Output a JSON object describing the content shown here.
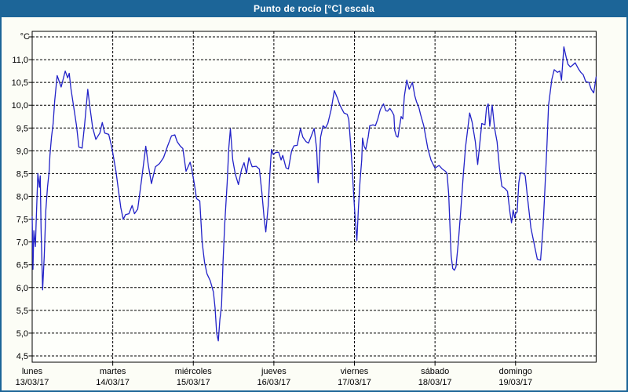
{
  "window": {
    "title": "Punto de rocío [°C] escala"
  },
  "colors": {
    "titlebar": "#1c6598",
    "outer_border": "#1c6598",
    "page_background": "#fcfdf6",
    "plot_background": "#fefffb",
    "grid": "#000000",
    "axis_text": "#000000",
    "line": "#2222c8"
  },
  "chart_data": {
    "type": "line",
    "title": "Punto de rocío [°C] escala",
    "y_unit_label": "°C",
    "ylabel": "Punto de rocío",
    "ylim": [
      4.5,
      11.5
    ],
    "y_tick_step": 0.5,
    "y_tick_labels": [
      "11,0",
      "10,5",
      "10,0",
      "9,5",
      "9,0",
      "8,5",
      "8,0",
      "7,5",
      "7,0",
      "6,5",
      "6,0",
      "5,5",
      "5,0",
      "4,5"
    ],
    "y_tick_values": [
      11.0,
      10.5,
      10.0,
      9.5,
      9.0,
      8.5,
      8.0,
      7.5,
      7.0,
      6.5,
      6.0,
      5.5,
      5.0,
      4.5
    ],
    "grid": {
      "dashed": true,
      "horizontal": true,
      "vertical_at_day_boundaries": true
    },
    "x_days": [
      {
        "name": "lunes",
        "date": "13/03/17"
      },
      {
        "name": "martes",
        "date": "14/03/17"
      },
      {
        "name": "miércoles",
        "date": "15/03/17"
      },
      {
        "name": "jueves",
        "date": "16/03/17"
      },
      {
        "name": "viernes",
        "date": "17/03/17"
      },
      {
        "name": "sábado",
        "date": "18/03/17"
      },
      {
        "name": "domingo",
        "date": "19/03/17"
      }
    ],
    "series": [
      {
        "name": "Punto de rocío [°C]",
        "color": "#2222c8",
        "x_unit": "days_from_start",
        "points": [
          [
            0.0,
            7.55
          ],
          [
            0.01,
            6.4
          ],
          [
            0.02,
            7.25
          ],
          [
            0.04,
            6.9
          ],
          [
            0.05,
            7.45
          ],
          [
            0.07,
            8.5
          ],
          [
            0.09,
            8.2
          ],
          [
            0.1,
            8.45
          ],
          [
            0.11,
            7.3
          ],
          [
            0.13,
            5.95
          ],
          [
            0.15,
            6.7
          ],
          [
            0.17,
            7.7
          ],
          [
            0.19,
            8.2
          ],
          [
            0.21,
            8.55
          ],
          [
            0.22,
            8.9
          ],
          [
            0.24,
            9.3
          ],
          [
            0.26,
            9.6
          ],
          [
            0.28,
            10.1
          ],
          [
            0.31,
            10.65
          ],
          [
            0.36,
            10.4
          ],
          [
            0.41,
            10.75
          ],
          [
            0.44,
            10.6
          ],
          [
            0.46,
            10.7
          ],
          [
            0.48,
            10.37
          ],
          [
            0.51,
            10.03
          ],
          [
            0.55,
            9.56
          ],
          [
            0.58,
            9.08
          ],
          [
            0.62,
            9.06
          ],
          [
            0.65,
            9.56
          ],
          [
            0.69,
            10.35
          ],
          [
            0.72,
            9.91
          ],
          [
            0.75,
            9.51
          ],
          [
            0.79,
            9.25
          ],
          [
            0.84,
            9.39
          ],
          [
            0.87,
            9.62
          ],
          [
            0.9,
            9.39
          ],
          [
            0.95,
            9.36
          ],
          [
            0.99,
            9.06
          ],
          [
            1.04,
            8.55
          ],
          [
            1.07,
            8.15
          ],
          [
            1.1,
            7.75
          ],
          [
            1.13,
            7.5
          ],
          [
            1.16,
            7.6
          ],
          [
            1.2,
            7.62
          ],
          [
            1.24,
            7.8
          ],
          [
            1.27,
            7.62
          ],
          [
            1.31,
            7.72
          ],
          [
            1.36,
            8.4
          ],
          [
            1.41,
            9.1
          ],
          [
            1.44,
            8.7
          ],
          [
            1.48,
            8.28
          ],
          [
            1.53,
            8.65
          ],
          [
            1.58,
            8.72
          ],
          [
            1.63,
            8.85
          ],
          [
            1.68,
            9.1
          ],
          [
            1.73,
            9.33
          ],
          [
            1.77,
            9.35
          ],
          [
            1.8,
            9.2
          ],
          [
            1.84,
            9.1
          ],
          [
            1.87,
            9.05
          ],
          [
            1.91,
            8.55
          ],
          [
            1.96,
            8.75
          ],
          [
            1.98,
            8.6
          ],
          [
            2.01,
            8.3
          ],
          [
            2.04,
            7.95
          ],
          [
            2.08,
            7.9
          ],
          [
            2.11,
            7.0
          ],
          [
            2.14,
            6.55
          ],
          [
            2.17,
            6.3
          ],
          [
            2.21,
            6.15
          ],
          [
            2.25,
            5.9
          ],
          [
            2.27,
            5.55
          ],
          [
            2.29,
            5.0
          ],
          [
            2.31,
            4.83
          ],
          [
            2.33,
            5.3
          ],
          [
            2.35,
            5.6
          ],
          [
            2.37,
            6.6
          ],
          [
            2.39,
            7.4
          ],
          [
            2.42,
            8.3
          ],
          [
            2.44,
            9.05
          ],
          [
            2.46,
            9.48
          ],
          [
            2.49,
            8.8
          ],
          [
            2.52,
            8.5
          ],
          [
            2.56,
            8.26
          ],
          [
            2.6,
            8.6
          ],
          [
            2.63,
            8.74
          ],
          [
            2.66,
            8.5
          ],
          [
            2.69,
            8.85
          ],
          [
            2.73,
            8.65
          ],
          [
            2.78,
            8.66
          ],
          [
            2.82,
            8.6
          ],
          [
            2.85,
            8.1
          ],
          [
            2.88,
            7.5
          ],
          [
            2.9,
            7.22
          ],
          [
            2.93,
            7.8
          ],
          [
            2.95,
            8.5
          ],
          [
            2.97,
            9.03
          ],
          [
            2.99,
            8.92
          ],
          [
            3.02,
            8.96
          ],
          [
            3.06,
            8.97
          ],
          [
            3.09,
            8.8
          ],
          [
            3.11,
            8.9
          ],
          [
            3.15,
            8.63
          ],
          [
            3.18,
            8.6
          ],
          [
            3.22,
            9.0
          ],
          [
            3.25,
            9.11
          ],
          [
            3.29,
            9.12
          ],
          [
            3.33,
            9.49
          ],
          [
            3.36,
            9.3
          ],
          [
            3.4,
            9.2
          ],
          [
            3.43,
            9.17
          ],
          [
            3.47,
            9.35
          ],
          [
            3.5,
            9.49
          ],
          [
            3.53,
            9.06
          ],
          [
            3.55,
            8.3
          ],
          [
            3.58,
            9.3
          ],
          [
            3.61,
            9.55
          ],
          [
            3.64,
            9.5
          ],
          [
            3.67,
            9.6
          ],
          [
            3.71,
            9.9
          ],
          [
            3.75,
            10.32
          ],
          [
            3.79,
            10.15
          ],
          [
            3.82,
            10.0
          ],
          [
            3.87,
            9.83
          ],
          [
            3.91,
            9.8
          ],
          [
            3.93,
            9.69
          ],
          [
            3.95,
            9.2
          ],
          [
            3.97,
            8.7
          ],
          [
            3.99,
            8.05
          ],
          [
            4.01,
            7.5
          ],
          [
            4.03,
            7.03
          ],
          [
            4.05,
            7.75
          ],
          [
            4.07,
            8.35
          ],
          [
            4.09,
            8.8
          ],
          [
            4.1,
            9.28
          ],
          [
            4.12,
            9.1
          ],
          [
            4.14,
            9.03
          ],
          [
            4.17,
            9.3
          ],
          [
            4.19,
            9.55
          ],
          [
            4.23,
            9.57
          ],
          [
            4.26,
            9.55
          ],
          [
            4.29,
            9.7
          ],
          [
            4.32,
            9.9
          ],
          [
            4.36,
            10.03
          ],
          [
            4.39,
            9.88
          ],
          [
            4.41,
            9.87
          ],
          [
            4.44,
            9.93
          ],
          [
            4.47,
            9.85
          ],
          [
            4.49,
            9.78
          ],
          [
            4.5,
            9.45
          ],
          [
            4.52,
            9.32
          ],
          [
            4.54,
            9.3
          ],
          [
            4.58,
            9.75
          ],
          [
            4.6,
            9.7
          ],
          [
            4.62,
            10.2
          ],
          [
            4.65,
            10.55
          ],
          [
            4.68,
            10.35
          ],
          [
            4.72,
            10.5
          ],
          [
            4.75,
            10.2
          ],
          [
            4.77,
            10.08
          ],
          [
            4.8,
            9.95
          ],
          [
            4.82,
            9.8
          ],
          [
            4.86,
            9.55
          ],
          [
            4.91,
            9.06
          ],
          [
            4.95,
            8.8
          ],
          [
            5.0,
            8.62
          ],
          [
            5.05,
            8.68
          ],
          [
            5.09,
            8.6
          ],
          [
            5.13,
            8.55
          ],
          [
            5.15,
            8.5
          ],
          [
            5.17,
            8.05
          ],
          [
            5.18,
            7.6
          ],
          [
            5.2,
            6.7
          ],
          [
            5.22,
            6.42
          ],
          [
            5.24,
            6.38
          ],
          [
            5.26,
            6.45
          ],
          [
            5.29,
            7.0
          ],
          [
            5.32,
            7.7
          ],
          [
            5.35,
            8.45
          ],
          [
            5.38,
            9.09
          ],
          [
            5.43,
            9.83
          ],
          [
            5.46,
            9.63
          ],
          [
            5.5,
            9.2
          ],
          [
            5.53,
            8.7
          ],
          [
            5.56,
            9.23
          ],
          [
            5.58,
            9.6
          ],
          [
            5.62,
            9.57
          ],
          [
            5.64,
            9.95
          ],
          [
            5.66,
            10.03
          ],
          [
            5.68,
            9.54
          ],
          [
            5.71,
            10.0
          ],
          [
            5.74,
            9.49
          ],
          [
            5.77,
            9.2
          ],
          [
            5.8,
            8.63
          ],
          [
            5.83,
            8.22
          ],
          [
            5.87,
            8.17
          ],
          [
            5.9,
            8.11
          ],
          [
            5.93,
            7.65
          ],
          [
            5.95,
            7.42
          ],
          [
            5.97,
            7.7
          ],
          [
            5.99,
            7.53
          ],
          [
            6.0,
            7.62
          ],
          [
            6.02,
            7.66
          ],
          [
            6.04,
            8.3
          ],
          [
            6.06,
            8.52
          ],
          [
            6.1,
            8.5
          ],
          [
            6.12,
            8.45
          ],
          [
            6.15,
            7.94
          ],
          [
            6.19,
            7.31
          ],
          [
            6.24,
            6.88
          ],
          [
            6.27,
            6.62
          ],
          [
            6.31,
            6.6
          ],
          [
            6.34,
            7.3
          ],
          [
            6.36,
            8.0
          ],
          [
            6.39,
            9.14
          ],
          [
            6.41,
            10.0
          ],
          [
            6.45,
            10.57
          ],
          [
            6.48,
            10.78
          ],
          [
            6.52,
            10.72
          ],
          [
            6.55,
            10.75
          ],
          [
            6.57,
            10.55
          ],
          [
            6.6,
            11.28
          ],
          [
            6.63,
            11.04
          ],
          [
            6.65,
            10.9
          ],
          [
            6.68,
            10.84
          ],
          [
            6.71,
            10.88
          ],
          [
            6.74,
            10.93
          ],
          [
            6.78,
            10.8
          ],
          [
            6.81,
            10.72
          ],
          [
            6.84,
            10.67
          ],
          [
            6.87,
            10.52
          ],
          [
            6.91,
            10.5
          ],
          [
            6.94,
            10.35
          ],
          [
            6.97,
            10.27
          ],
          [
            7.0,
            10.62
          ]
        ]
      }
    ]
  }
}
